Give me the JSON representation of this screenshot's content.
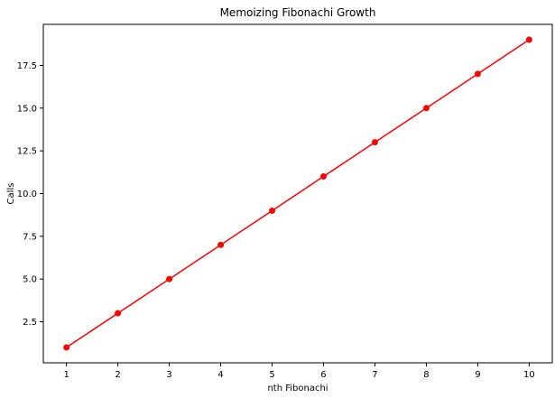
{
  "chart_data": {
    "type": "line",
    "title": "Memoizing Fibonachi Growth",
    "xlabel": "nth Fibonachi",
    "ylabel": "Calls",
    "x": [
      1,
      2,
      3,
      4,
      5,
      6,
      7,
      8,
      9,
      10
    ],
    "series": [
      {
        "values": [
          1,
          3,
          5,
          7,
          9,
          11,
          13,
          15,
          17,
          19
        ],
        "color": "#ff0000",
        "marker": "circle"
      }
    ],
    "xlim": [
      0.55,
      10.45
    ],
    "ylim": [
      0.1,
      19.9
    ],
    "xticks": [
      1,
      2,
      3,
      4,
      5,
      6,
      7,
      8,
      9,
      10
    ],
    "yticks": [
      2.5,
      5.0,
      7.5,
      10.0,
      12.5,
      15.0,
      17.5
    ],
    "ytick_labels": [
      "2.5",
      "5.0",
      "7.5",
      "10.0",
      "12.5",
      "15.0",
      "17.5"
    ],
    "grid": false,
    "legend": "none"
  }
}
